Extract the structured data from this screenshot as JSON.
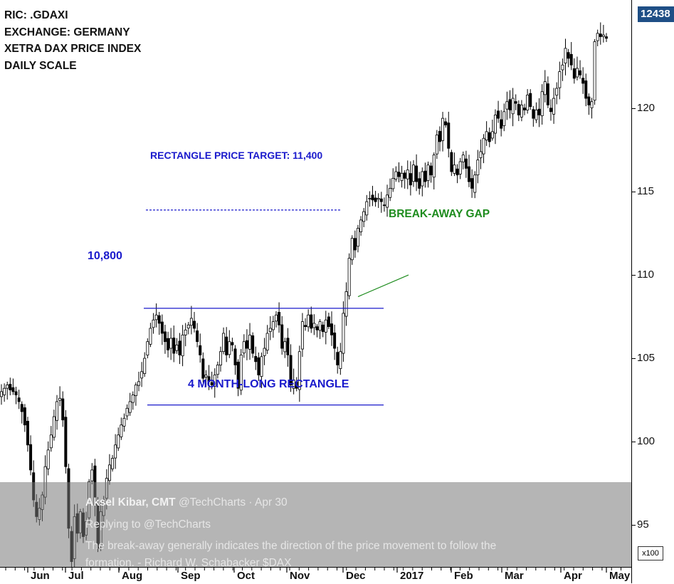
{
  "info_lines": [
    "RIC: .GDAXI",
    "EXCHANGE: GERMANY",
    "XETRA DAX PRICE INDEX",
    "DAILY SCALE"
  ],
  "annotations": {
    "target": "RECTANGLE PRICE TARGET: 11,400",
    "breakaway": "BREAK-AWAY GAP",
    "level": "10,800",
    "rectangle": "4 MONTH-LONG RECTANGLE"
  },
  "last_price_label": "12438",
  "scale_label": "x100",
  "tweet": {
    "author": "Aksel Kibar, CMT",
    "handle": "@TechCharts",
    "date": "· Apr 30",
    "reply": "Replying to @TechCharts",
    "text_line1": "The break-away generally indicates the direction of the price movement to follow the",
    "text_line2": "formation. - Richard W. Schabacker $DAX"
  },
  "colors": {
    "annotation_blue": "#1a1acc",
    "annotation_green": "#1e8c1e",
    "candle": "#000000",
    "last_price_bg": "#1f4f86"
  },
  "chart_data": {
    "type": "candlestick",
    "title": "RIC: .GDAXI",
    "price_unit_note": "x100",
    "y_ticks": [
      95,
      100,
      105,
      110,
      115,
      120
    ],
    "ylim": [
      91.5,
      126.5
    ],
    "x_tick_labels": [
      "Jun",
      "Jul",
      "Aug",
      "Sep",
      "Oct",
      "Nov",
      "Dec",
      "2017",
      "Feb",
      "Mar",
      "Apr",
      "May"
    ],
    "rectangle_top": 108.0,
    "rectangle_bottom": 102.2,
    "price_target": 113.9,
    "approx_closes": [
      103.0,
      103.2,
      103.4,
      103.1,
      103.0,
      102.8,
      102.4,
      101.8,
      101.0,
      99.8,
      98.3,
      96.5,
      95.5,
      96.0,
      96.8,
      98.5,
      99.5,
      100.4,
      101.5,
      102.4,
      102.6,
      101.3,
      98.5,
      94.8,
      92.8,
      95.5,
      94.5,
      95.8,
      94.3,
      95.2,
      97.6,
      98.3,
      96.2,
      93.6,
      95.8,
      96.5,
      97.8,
      98.6,
      99.0,
      99.8,
      100.4,
      101.0,
      101.4,
      102.0,
      102.4,
      102.8,
      103.4,
      103.6,
      104.2,
      105.0,
      106.0,
      106.8,
      107.3,
      107.6,
      107.1,
      106.5,
      106.0,
      105.5,
      106.2,
      105.3,
      105.8,
      105.2,
      106.4,
      106.7,
      107.0,
      107.4,
      106.8,
      106.0,
      105.2,
      103.8,
      104.0,
      103.6,
      103.4,
      104.0,
      104.6,
      105.4,
      106.5,
      105.2,
      106.0,
      105.8,
      104.6,
      103.2,
      105.2,
      106.0,
      105.6,
      106.4,
      105.3,
      104.8,
      104.0,
      105.1,
      105.6,
      106.5,
      106.8,
      107.2,
      107.6,
      107.0,
      105.6,
      106.0,
      105.2,
      103.4,
      103.7,
      103.2,
      105.4,
      107.2,
      106.9,
      107.6,
      106.8,
      107.1,
      106.7,
      107.2,
      106.6,
      107.3,
      106.9,
      106.4,
      105.6,
      104.6,
      105.4,
      107.7,
      109.0,
      111.0,
      112.2,
      111.5,
      112.8,
      113.3,
      113.8,
      114.4,
      114.6,
      114.5,
      114.4,
      114.6,
      114.4,
      114.2,
      114.8,
      115.2,
      115.8,
      116.2,
      115.9,
      116.1,
      115.8,
      116.3,
      115.4,
      116.6,
      115.6,
      115.2,
      116.2,
      115.6,
      116.6,
      116.0,
      117.2,
      118.4,
      118.0,
      119.4,
      119.0,
      117.6,
      116.2,
      116.6,
      116.0,
      116.8,
      117.2,
      116.4,
      115.6,
      115.2,
      116.0,
      116.9,
      117.4,
      118.2,
      118.6,
      118.0,
      118.6,
      119.6,
      119.4,
      118.8,
      119.8,
      120.4,
      119.9,
      120.6,
      120.3,
      119.6,
      120.2,
      119.9,
      120.8,
      120.1,
      119.4,
      119.9,
      119.6,
      121.0,
      121.6,
      120.2,
      119.8,
      120.6,
      121.2,
      122.2,
      122.6,
      123.6,
      123.0,
      122.6,
      121.8,
      122.4,
      122.0,
      121.5,
      120.6,
      120.2,
      120.4,
      124.0,
      124.5,
      124.3,
      124.4,
      124.2
    ]
  }
}
